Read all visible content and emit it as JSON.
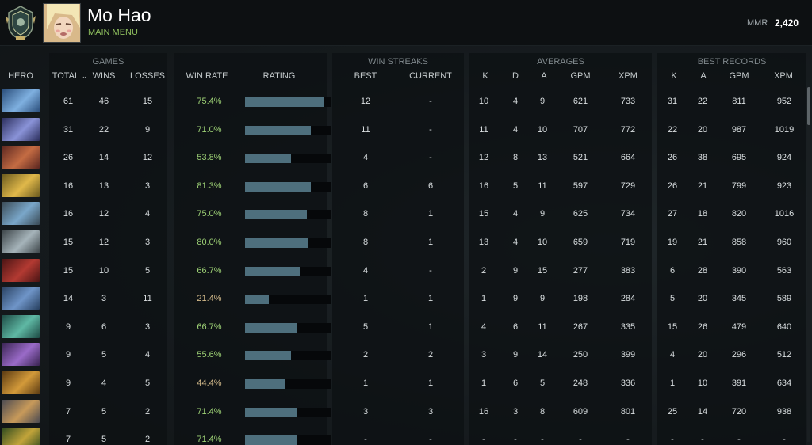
{
  "player": {
    "name": "Mo Hao",
    "menu": "MAIN MENU"
  },
  "mmr": {
    "label": "MMR",
    "value": "2,420"
  },
  "groups": {
    "games": "GAMES",
    "win_streaks": "WIN STREAKS",
    "averages": "AVERAGES",
    "best_records": "BEST RECORDS"
  },
  "columns": {
    "hero": "HERO",
    "total": "TOTAL",
    "wins": "WINS",
    "losses": "LOSSES",
    "win_rate": "WIN RATE",
    "rating": "RATING",
    "best": "BEST",
    "current": "CURRENT",
    "avg_k": "K",
    "avg_d": "D",
    "avg_a": "A",
    "avg_gpm": "GPM",
    "avg_xpm": "XPM",
    "rec_k": "K",
    "rec_a": "A",
    "rec_gpm": "GPM",
    "rec_xpm": "XPM"
  },
  "sort_indicator": "⌄",
  "colors": {
    "win_good": "#9ed276",
    "win_bad": "#d2b98a",
    "bar": "#4e6f7d"
  },
  "rows": [
    {
      "hero_icon": "hero-portrait-blue-ranger",
      "total": "61",
      "wins": "46",
      "losses": "15",
      "win_rate": "75.4%",
      "rating": 0.93,
      "best": "12",
      "current": "-",
      "k": "10",
      "d": "4",
      "a": "9",
      "gpm": "621",
      "xpm": "733",
      "rk": "31",
      "ra": "22",
      "rgpm": "811",
      "rxpm": "952"
    },
    {
      "hero_icon": "hero-portrait-purple-knight",
      "total": "31",
      "wins": "22",
      "losses": "9",
      "win_rate": "71.0%",
      "rating": 0.77,
      "best": "11",
      "current": "-",
      "k": "11",
      "d": "4",
      "a": "10",
      "gpm": "707",
      "xpm": "772",
      "rk": "22",
      "ra": "20",
      "rgpm": "987",
      "rxpm": "1019"
    },
    {
      "hero_icon": "hero-portrait-red-brute",
      "total": "26",
      "wins": "14",
      "losses": "12",
      "win_rate": "53.8%",
      "rating": 0.54,
      "best": "4",
      "current": "-",
      "k": "12",
      "d": "8",
      "a": "13",
      "gpm": "521",
      "xpm": "664",
      "rk": "26",
      "ra": "38",
      "rgpm": "695",
      "rxpm": "924"
    },
    {
      "hero_icon": "hero-portrait-golden-sorceress",
      "total": "16",
      "wins": "13",
      "losses": "3",
      "win_rate": "81.3%",
      "rating": 0.77,
      "best": "6",
      "current": "6",
      "k": "16",
      "d": "5",
      "a": "11",
      "gpm": "597",
      "xpm": "729",
      "rk": "26",
      "ra": "21",
      "rgpm": "799",
      "rxpm": "923"
    },
    {
      "hero_icon": "hero-portrait-armored-warrior",
      "total": "16",
      "wins": "12",
      "losses": "4",
      "win_rate": "75.0%",
      "rating": 0.72,
      "best": "8",
      "current": "1",
      "k": "15",
      "d": "4",
      "a": "9",
      "gpm": "625",
      "xpm": "734",
      "rk": "27",
      "ra": "18",
      "rgpm": "820",
      "rxpm": "1016"
    },
    {
      "hero_icon": "hero-portrait-silver-rogue",
      "total": "15",
      "wins": "12",
      "losses": "3",
      "win_rate": "80.0%",
      "rating": 0.74,
      "best": "8",
      "current": "1",
      "k": "13",
      "d": "4",
      "a": "10",
      "gpm": "659",
      "xpm": "719",
      "rk": "19",
      "ra": "21",
      "rgpm": "858",
      "rxpm": "960"
    },
    {
      "hero_icon": "hero-portrait-red-hooded",
      "total": "15",
      "wins": "10",
      "losses": "5",
      "win_rate": "66.7%",
      "rating": 0.64,
      "best": "4",
      "current": "-",
      "k": "2",
      "d": "9",
      "a": "15",
      "gpm": "277",
      "xpm": "383",
      "rk": "6",
      "ra": "28",
      "rgpm": "390",
      "rxpm": "563"
    },
    {
      "hero_icon": "hero-portrait-blue-brawler",
      "total": "14",
      "wins": "3",
      "losses": "11",
      "win_rate": "21.4%",
      "rating": 0.28,
      "best": "1",
      "current": "1",
      "k": "1",
      "d": "9",
      "a": "9",
      "gpm": "198",
      "xpm": "284",
      "rk": "5",
      "ra": "20",
      "rgpm": "345",
      "rxpm": "589"
    },
    {
      "hero_icon": "hero-portrait-teal-beast",
      "total": "9",
      "wins": "6",
      "losses": "3",
      "win_rate": "66.7%",
      "rating": 0.6,
      "best": "5",
      "current": "1",
      "k": "4",
      "d": "6",
      "a": "11",
      "gpm": "267",
      "xpm": "335",
      "rk": "15",
      "ra": "26",
      "rgpm": "479",
      "rxpm": "640"
    },
    {
      "hero_icon": "hero-portrait-horned-demon",
      "total": "9",
      "wins": "5",
      "losses": "4",
      "win_rate": "55.6%",
      "rating": 0.54,
      "best": "2",
      "current": "2",
      "k": "3",
      "d": "9",
      "a": "14",
      "gpm": "250",
      "xpm": "399",
      "rk": "4",
      "ra": "20",
      "rgpm": "296",
      "rxpm": "512"
    },
    {
      "hero_icon": "hero-portrait-bearded-dwarf",
      "total": "9",
      "wins": "4",
      "losses": "5",
      "win_rate": "44.4%",
      "rating": 0.47,
      "best": "1",
      "current": "1",
      "k": "1",
      "d": "6",
      "a": "5",
      "gpm": "248",
      "xpm": "336",
      "rk": "1",
      "ra": "10",
      "rgpm": "391",
      "rxpm": "634"
    },
    {
      "hero_icon": "hero-portrait-winged-archer",
      "total": "7",
      "wins": "5",
      "losses": "2",
      "win_rate": "71.4%",
      "rating": 0.6,
      "best": "3",
      "current": "3",
      "k": "16",
      "d": "3",
      "a": "8",
      "gpm": "609",
      "xpm": "801",
      "rk": "25",
      "ra": "14",
      "rgpm": "720",
      "rxpm": "938"
    },
    {
      "hero_icon": "hero-portrait-green-gold",
      "total": "7",
      "wins": "5",
      "losses": "2",
      "win_rate": "71.4%",
      "rating": 0.6,
      "best": "-",
      "current": "-",
      "k": "-",
      "d": "-",
      "a": "-",
      "gpm": "-",
      "xpm": "-",
      "rk": "-",
      "ra": "-",
      "rgpm": "-",
      "rxpm": "-"
    }
  ]
}
